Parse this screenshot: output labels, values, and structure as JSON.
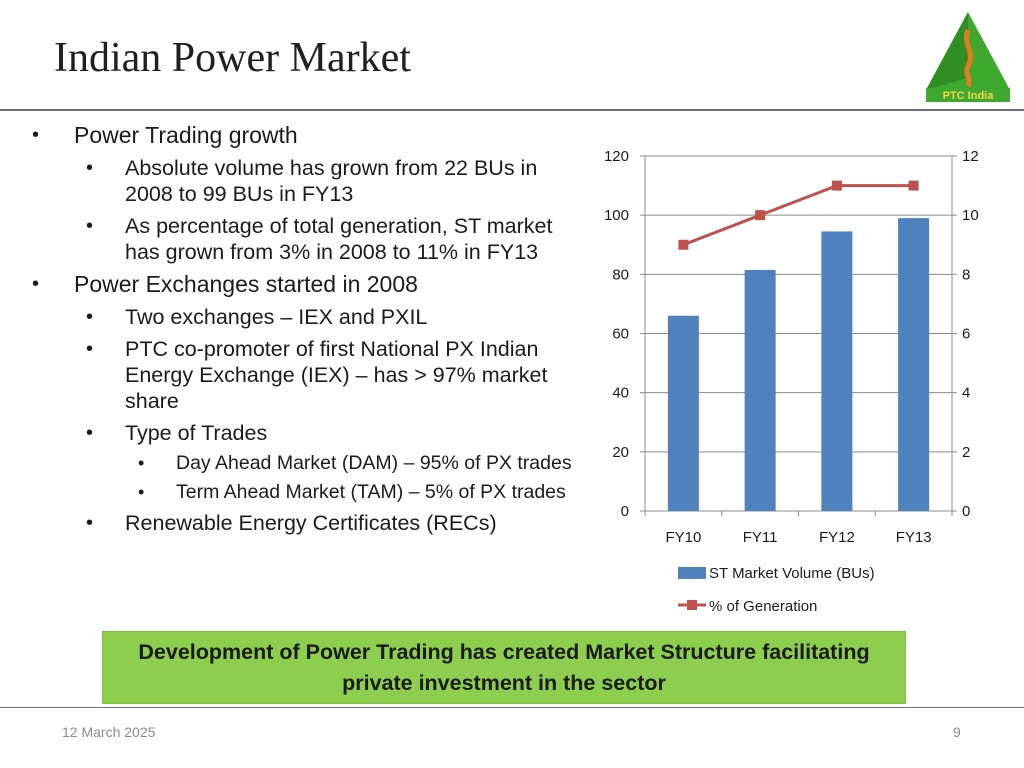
{
  "slide": {
    "title": "Indian Power Market",
    "date": "12 March 2025",
    "page_number": "9"
  },
  "logo": {
    "text": "PTC India"
  },
  "bullets": [
    {
      "level": 1,
      "text": "Power Trading growth"
    },
    {
      "level": 2,
      "text": "Absolute volume has grown from 22 BUs in 2008 to 99 BUs in FY13"
    },
    {
      "level": 2,
      "text": "As percentage of total generation, ST market has grown from 3% in 2008 to 11% in FY13"
    },
    {
      "level": 1,
      "text": "Power Exchanges started in 2008"
    },
    {
      "level": 2,
      "text": "Two exchanges – IEX and PXIL"
    },
    {
      "level": 2,
      "text": "PTC co-promoter of first National PX Indian Energy Exchange (IEX) – has > 97% market share"
    },
    {
      "level": 2,
      "text": "Type of Trades"
    },
    {
      "level": 3,
      "text": "Day Ahead Market (DAM) – 95% of PX trades"
    },
    {
      "level": 3,
      "text": "Term Ahead Market (TAM) – 5% of PX trades"
    },
    {
      "level": 2,
      "text": "Renewable Energy Certificates (RECs)"
    }
  ],
  "callout": {
    "text": "Development of Power Trading has created Market Structure facilitating private investment in the sector"
  },
  "chart_data": {
    "type": "bar",
    "categories": [
      "FY10",
      "FY11",
      "FY12",
      "FY13"
    ],
    "series": [
      {
        "name": "ST Market Volume (BUs)",
        "type": "bar",
        "axis": "left",
        "color": "#4f81bd",
        "values": [
          66,
          81.5,
          94.5,
          99
        ]
      },
      {
        "name": "% of Generation",
        "type": "line",
        "axis": "right",
        "color": "#c0504d",
        "values": [
          9,
          10,
          11,
          11
        ]
      }
    ],
    "ylim_left": [
      0,
      120
    ],
    "ylim_right": [
      0,
      12
    ],
    "yticks_left": [
      "0",
      "20",
      "40",
      "60",
      "80",
      "100",
      "120"
    ],
    "yticks_right": [
      "0",
      "2",
      "4",
      "6",
      "8",
      "10",
      "12"
    ],
    "grid": true,
    "legend_position": "bottom"
  },
  "colors": {
    "callout_bg": "#8dce4f",
    "bar": "#4f81bd",
    "line": "#c0504d",
    "rule": "#6b6b8e"
  }
}
